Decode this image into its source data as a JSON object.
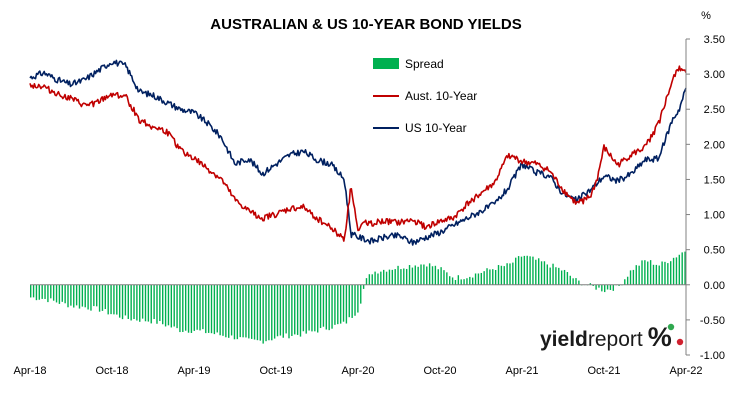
{
  "chart_data": {
    "type": "line",
    "title": "AUSTRALIAN & US 10-YEAR BOND YIELDS",
    "y_unit_label": "%",
    "ylim": [
      -1.0,
      3.5
    ],
    "y_ticks": [
      "3.50",
      "3.00",
      "2.50",
      "2.00",
      "1.50",
      "1.00",
      "0.50",
      "0.00",
      "-0.50",
      "-1.00"
    ],
    "y_tick_values": [
      3.5,
      3.0,
      2.5,
      2.0,
      1.5,
      1.0,
      0.5,
      0.0,
      -0.5,
      -1.0
    ],
    "x_ticks": [
      "Apr-18",
      "Oct-18",
      "Apr-19",
      "Oct-19",
      "Apr-20",
      "Oct-20",
      "Apr-21",
      "Oct-21",
      "Apr-22"
    ],
    "x_tick_months": [
      0,
      6,
      12,
      18,
      24,
      30,
      36,
      42,
      48
    ],
    "x_start": "Apr-18",
    "grid": false,
    "legend_position": "top-center",
    "logo_text": "yieldreport %",
    "series": [
      {
        "name": "Spread",
        "type": "bar",
        "color": "#00b050",
        "x_months": [
          0,
          1,
          2,
          3,
          4,
          5,
          6,
          7,
          8,
          9,
          10,
          11,
          12,
          13,
          14,
          15,
          16,
          17,
          18,
          19,
          20,
          21,
          22,
          23,
          24,
          24.5,
          25,
          26,
          27,
          28,
          29,
          30,
          31,
          32,
          33,
          34,
          35,
          36,
          37,
          38,
          39,
          40,
          41,
          42,
          43,
          44,
          45,
          46,
          47,
          48
        ],
        "values": [
          -0.18,
          -0.2,
          -0.25,
          -0.3,
          -0.32,
          -0.35,
          -0.42,
          -0.48,
          -0.5,
          -0.52,
          -0.58,
          -0.65,
          -0.65,
          -0.68,
          -0.72,
          -0.75,
          -0.8,
          -0.8,
          -0.75,
          -0.72,
          -0.7,
          -0.65,
          -0.6,
          -0.55,
          -0.35,
          0.05,
          0.18,
          0.22,
          0.25,
          0.28,
          0.3,
          0.22,
          0.1,
          0.12,
          0.18,
          0.24,
          0.28,
          0.42,
          0.35,
          0.28,
          0.2,
          0.05,
          -0.02,
          -0.08,
          -0.03,
          0.22,
          0.35,
          0.28,
          0.38,
          0.5
        ]
      },
      {
        "name": "Aust. 10-Year",
        "type": "line",
        "color": "#c00000",
        "x_months": [
          0,
          1,
          2,
          3,
          4,
          5,
          6,
          7,
          8,
          9,
          10,
          11,
          12,
          13,
          14,
          15,
          16,
          17,
          18,
          19,
          20,
          21,
          22,
          23,
          23.5,
          24,
          24.5,
          25,
          26,
          27,
          28,
          29,
          30,
          31,
          32,
          33,
          34,
          35,
          36,
          37,
          38,
          39,
          40,
          41,
          41.5,
          42,
          43,
          44,
          45,
          46,
          47,
          47.5,
          48
        ],
        "values": [
          2.85,
          2.82,
          2.72,
          2.65,
          2.55,
          2.6,
          2.72,
          2.68,
          2.35,
          2.25,
          2.18,
          1.92,
          1.8,
          1.65,
          1.5,
          1.2,
          1.05,
          0.95,
          1.0,
          1.08,
          1.1,
          0.95,
          0.82,
          0.65,
          1.42,
          0.75,
          0.9,
          0.88,
          0.9,
          0.88,
          0.92,
          0.82,
          0.9,
          0.95,
          1.15,
          1.3,
          1.45,
          1.85,
          1.75,
          1.72,
          1.62,
          1.35,
          1.15,
          1.25,
          1.5,
          1.95,
          1.7,
          1.85,
          1.95,
          2.3,
          2.9,
          3.1,
          3.05
        ]
      },
      {
        "name": "US 10-Year",
        "type": "line",
        "color": "#002060",
        "x_months": [
          0,
          1,
          2,
          3,
          4,
          5,
          6,
          7,
          8,
          9,
          10,
          11,
          12,
          13,
          14,
          15,
          16,
          17,
          18,
          19,
          20,
          21,
          22,
          23,
          23.5,
          24,
          25,
          26,
          27,
          28,
          29,
          30,
          31,
          32,
          33,
          34,
          35,
          36,
          37,
          38,
          39,
          40,
          41,
          42,
          43,
          44,
          45,
          46,
          47,
          47.5,
          48
        ],
        "values": [
          2.95,
          3.02,
          2.92,
          2.85,
          2.92,
          3.05,
          3.18,
          3.12,
          2.75,
          2.7,
          2.6,
          2.5,
          2.45,
          2.3,
          2.1,
          1.72,
          1.8,
          1.58,
          1.72,
          1.85,
          1.9,
          1.78,
          1.72,
          1.5,
          0.72,
          0.68,
          0.62,
          0.68,
          0.7,
          0.6,
          0.68,
          0.75,
          0.85,
          0.95,
          1.05,
          1.15,
          1.38,
          1.72,
          1.6,
          1.55,
          1.3,
          1.2,
          1.35,
          1.55,
          1.48,
          1.58,
          1.78,
          1.8,
          2.35,
          2.5,
          2.8
        ]
      }
    ]
  }
}
